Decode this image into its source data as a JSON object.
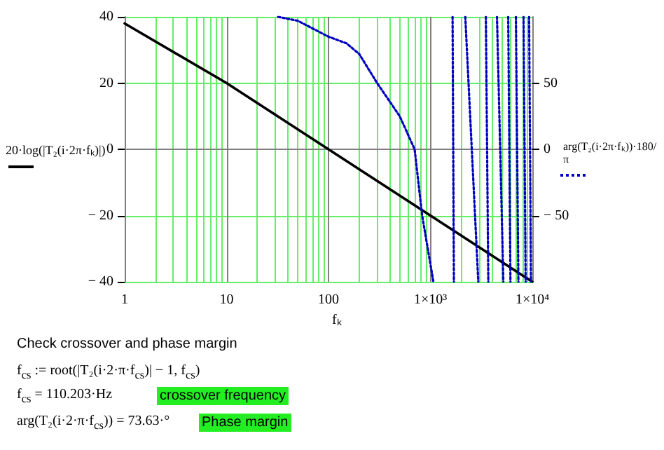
{
  "chart_data": {
    "type": "line",
    "xlabel": "fₖ",
    "ylabel": "20·log(|T₂(i·2π·fₖ)|)",
    "y2label": "arg(T₂(i·2π·fₖ))·180/π",
    "annotations": [
      "Check crossover and phase margin",
      "f$_{cs}$ := root(|T₂(i·2·π·f$_{cs}$)| − 1, f$_{cs}$)",
      "f$_{cs}$ = 110.203·Hz",
      "crossover frequency",
      "arg(T₂(i·2·π·f$_{cs}$)) = 73.63·°",
      "Phase margin"
    ],
    "series": [
      {
        "color": "#000000",
        "line_style": "solid",
        "x": [
          1,
          10,
          100,
          1000,
          10000
        ],
        "values": [
          38,
          20,
          0,
          -20,
          -40
        ]
      },
      {
        "color": "#0000c0",
        "line_style": "dotted",
        "axis": "y2",
        "x": [
          32,
          50,
          100,
          150,
          200,
          300,
          500,
          700,
          830,
          1070,
          1300,
          1650,
          1700,
          1900,
          2200,
          2950,
          3200,
          3500,
          3700,
          4100,
          4500,
          5200,
          5500,
          5800,
          6100,
          6500,
          6900,
          7300,
          7700,
          8200,
          8600,
          8900,
          9300,
          9700
        ],
        "values": [
          100,
          97,
          85,
          80,
          72,
          50,
          25,
          0,
          -50,
          -100,
          null,
          100,
          -100,
          null,
          100,
          -100,
          null,
          100,
          -100,
          null,
          100,
          -100,
          null,
          100,
          -100,
          null,
          100,
          -100,
          null,
          100,
          -100,
          null,
          100,
          -100
        ]
      }
    ],
    "log": "x",
    "marker": "none",
    "grid": true,
    "xlim": [
      1,
      10000
    ],
    "xticks": [
      1,
      10,
      100,
      {
        "value": 1000,
        "label": "1×10³"
      },
      {
        "value": 10000,
        "label": "1×10⁴"
      }
    ],
    "ylim": [
      -40,
      40
    ],
    "yticks": [
      {
        "value": -40,
        "label": "− 40"
      },
      {
        "value": -20,
        "label": "− 20"
      },
      0,
      20,
      40
    ],
    "y2lim": [
      -100,
      100
    ],
    "y2ticks": [
      {
        "value": -50,
        "label": "− 50"
      },
      0,
      50
    ]
  }
}
